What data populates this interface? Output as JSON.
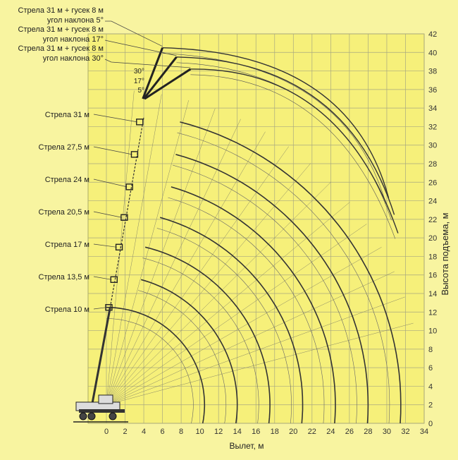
{
  "chart_data": {
    "type": "line",
    "title": "",
    "xlabel": "Вылет, м",
    "ylabel": "Высота подъема, м",
    "xlim": [
      0,
      34
    ],
    "ylim": [
      0,
      42
    ],
    "x_ticks": [
      "0",
      "2",
      "4",
      "6",
      "8",
      "10",
      "12",
      "14",
      "16",
      "18",
      "20",
      "22",
      "24",
      "26",
      "28",
      "30",
      "32",
      "34"
    ],
    "y_ticks": [
      "0",
      "2",
      "4",
      "6",
      "8",
      "10",
      "12",
      "14",
      "16",
      "18",
      "20",
      "22",
      "24",
      "26",
      "28",
      "30",
      "32",
      "34",
      "36",
      "38",
      "40",
      "42"
    ],
    "background": "#f8f4a0",
    "plot_background": "#f6f07a",
    "grid": true,
    "pivot": {
      "x": 0,
      "y": 2
    },
    "booms": [
      {
        "label": "Стрела 10 м",
        "length": 10,
        "tip_height": 12.5,
        "max_reach": 8.7
      },
      {
        "label": "Стрела 13,5 м",
        "length": 13.5,
        "tip_height": 15.5,
        "max_reach": 12.2
      },
      {
        "label": "Стрела 17 м",
        "length": 17,
        "tip_height": 19,
        "max_reach": 15.7
      },
      {
        "label": "Стрела 20,5 м",
        "length": 20.5,
        "tip_height": 22.2,
        "max_reach": 19.2
      },
      {
        "label": "Стрела 24 м",
        "length": 24,
        "tip_height": 25.5,
        "max_reach": 22.7
      },
      {
        "label": "Стрела 27,5 м",
        "length": 27.5,
        "tip_height": 29,
        "max_reach": 26.2
      },
      {
        "label": "Стрела 31 м",
        "length": 31,
        "tip_height": 32.5,
        "max_reach": 29.7
      }
    ],
    "jibs": [
      {
        "label_line1": "Стрела 31 м + гусек 8 м",
        "label_line2": "угол наклона 5°",
        "angle_tag": "5°",
        "tip_height": 40.5,
        "end": [
          30.2,
          24.3
        ]
      },
      {
        "label_line1": "Стрела 31 м + гусек 8 м",
        "label_line2": "угол наклона 17°",
        "angle_tag": "17°",
        "tip_height": 39.5,
        "end": [
          30.8,
          22.5
        ]
      },
      {
        "label_line1": "Стрела 31 м + гусек 8 м",
        "label_line2": "угол наклона 30°",
        "angle_tag": "30°",
        "tip_height": 38.2,
        "end": [
          31.2,
          20.5
        ]
      }
    ],
    "legend": "none"
  }
}
